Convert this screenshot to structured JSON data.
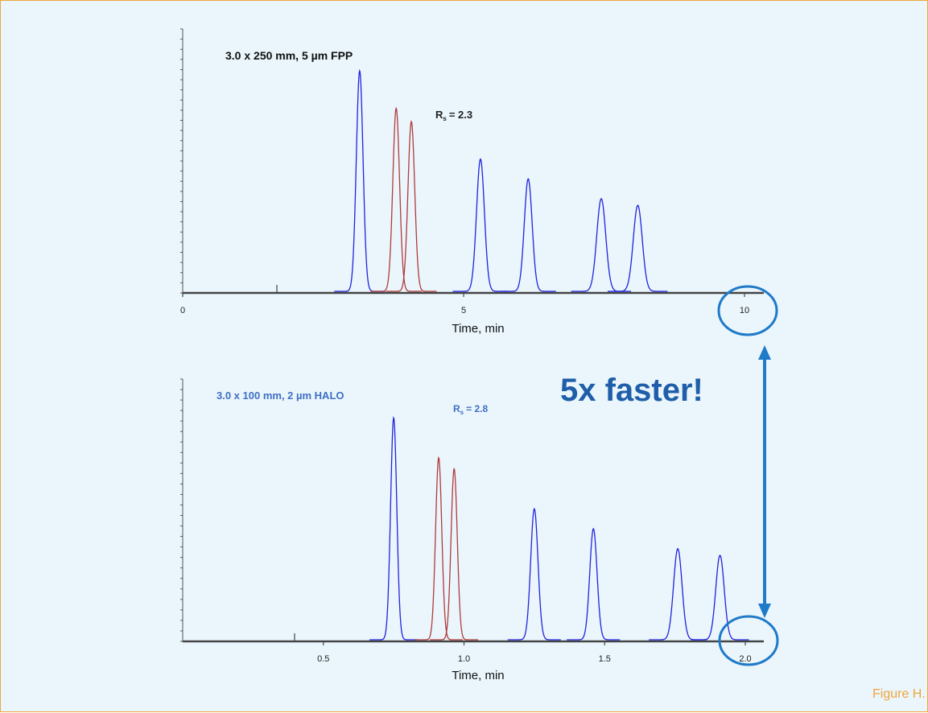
{
  "chart_data": [
    {
      "type": "line",
      "title": "3.0 x 250 mm, 5 µm FPP",
      "annotation": "= 2.3",
      "annotation_symbol": "R",
      "annotation_subscript": "s",
      "xlabel": "Time, min",
      "xlim": [
        0,
        10.2
      ],
      "x_ticks": [
        "0",
        "5",
        "10"
      ],
      "x_tick_values": [
        0,
        5,
        10
      ],
      "peaks": [
        {
          "x": 3.15,
          "height": 1.0,
          "width": 0.06,
          "color": "#2222dd"
        },
        {
          "x": 3.8,
          "height": 0.83,
          "width": 0.06,
          "color": "#b03a3a"
        },
        {
          "x": 4.07,
          "height": 0.77,
          "width": 0.06,
          "color": "#b03a3a"
        },
        {
          "x": 5.3,
          "height": 0.6,
          "width": 0.07,
          "color": "#2222dd"
        },
        {
          "x": 6.15,
          "height": 0.51,
          "width": 0.07,
          "color": "#2222dd"
        },
        {
          "x": 7.45,
          "height": 0.42,
          "width": 0.08,
          "color": "#2222dd"
        },
        {
          "x": 8.1,
          "height": 0.39,
          "width": 0.08,
          "color": "#2222dd"
        }
      ]
    },
    {
      "type": "line",
      "title": "3.0 x 100 mm, 2 µm HALO",
      "annotation": "= 2.8",
      "annotation_symbol": "R",
      "annotation_subscript": "s",
      "xlabel": "Time, min",
      "xlim": [
        0,
        2.04
      ],
      "x_ticks": [
        "0.5",
        "1.0",
        "1.5",
        "2.0"
      ],
      "x_tick_values": [
        0.5,
        1.0,
        1.5,
        2.0
      ],
      "peaks": [
        {
          "x": 0.75,
          "height": 1.0,
          "width": 0.011,
          "color": "#2222dd"
        },
        {
          "x": 0.91,
          "height": 0.82,
          "width": 0.011,
          "color": "#b03a3a"
        },
        {
          "x": 0.965,
          "height": 0.77,
          "width": 0.011,
          "color": "#b03a3a"
        },
        {
          "x": 1.25,
          "height": 0.59,
          "width": 0.013,
          "color": "#2222dd"
        },
        {
          "x": 1.46,
          "height": 0.5,
          "width": 0.013,
          "color": "#2222dd"
        },
        {
          "x": 1.76,
          "height": 0.41,
          "width": 0.015,
          "color": "#2222dd"
        },
        {
          "x": 1.91,
          "height": 0.38,
          "width": 0.015,
          "color": "#2222dd"
        }
      ]
    }
  ],
  "callout": "5x faster!",
  "caption": "Figure H.",
  "colors": {
    "accent": "#1f7ac8",
    "border": "#f0a53a",
    "background": "#eaf6fc"
  }
}
